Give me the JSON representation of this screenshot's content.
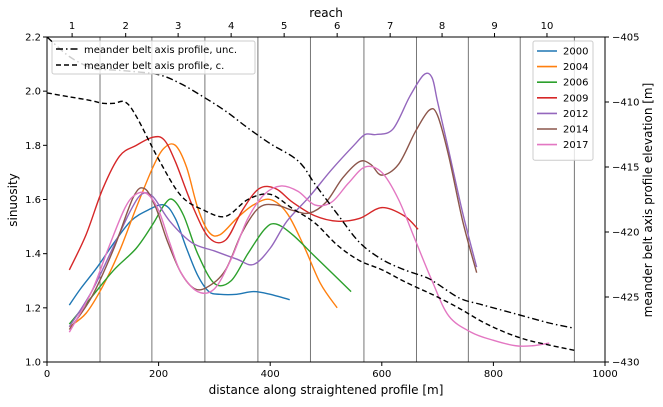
{
  "chart_data": {
    "type": "line",
    "xlabel": "distance along straightened profile [m]",
    "ylabel": "sinuosity",
    "y2label": "meander belt axis profile elevation [m]",
    "top_axis_label": "reach",
    "xlim": [
      0,
      1000
    ],
    "ylim": [
      1.0,
      2.2
    ],
    "y2lim": [
      -430,
      -405
    ],
    "xticks": [
      0,
      200,
      400,
      600,
      800,
      1000
    ],
    "yticks": [
      1.0,
      1.2,
      1.4,
      1.6,
      1.8,
      2.0,
      2.2
    ],
    "yticks_labels": [
      "1.0",
      "1.2",
      "1.4",
      "1.6",
      "1.8",
      "2.0",
      "2.2"
    ],
    "y2ticks": [
      -430,
      -425,
      -420,
      -415,
      -410,
      -405
    ],
    "reach_boundaries": [
      95,
      188,
      283,
      378,
      472,
      568,
      662,
      755,
      848,
      945
    ],
    "reach_labels": [
      "1",
      "2",
      "3",
      "4",
      "5",
      "6",
      "7",
      "8",
      "9",
      "10"
    ],
    "reach_label_x": [
      45,
      141,
      235,
      330,
      425,
      520,
      615,
      708,
      802,
      896
    ],
    "legend_left": {
      "placement": "upper-left",
      "entries": [
        {
          "label": "meander belt axis profile, unc.",
          "dash": "dashdot"
        },
        {
          "label": "meander belt axis profile, c.",
          "dash": "dashed"
        }
      ]
    },
    "legend_right": {
      "placement": "upper-right"
    },
    "series": [
      {
        "name": "2000",
        "color": "#1f77b4",
        "x": [
          40,
          60,
          90,
          120,
          150,
          180,
          210,
          230,
          250,
          270,
          290,
          310,
          340,
          370,
          400,
          435
        ],
        "y": [
          1.21,
          1.27,
          1.35,
          1.44,
          1.52,
          1.56,
          1.58,
          1.53,
          1.42,
          1.32,
          1.26,
          1.25,
          1.25,
          1.26,
          1.25,
          1.23
        ]
      },
      {
        "name": "2004",
        "color": "#ff7f0e",
        "x": [
          40,
          70,
          100,
          130,
          160,
          190,
          210,
          230,
          250,
          270,
          290,
          310,
          340,
          370,
          400,
          430,
          460,
          490,
          520
        ],
        "y": [
          1.13,
          1.18,
          1.28,
          1.41,
          1.57,
          1.72,
          1.79,
          1.8,
          1.72,
          1.57,
          1.48,
          1.47,
          1.53,
          1.58,
          1.6,
          1.55,
          1.43,
          1.29,
          1.2
        ]
      },
      {
        "name": "2006",
        "color": "#2ca02c",
        "x": [
          40,
          80,
          120,
          160,
          190,
          210,
          225,
          245,
          270,
          300,
          330,
          360,
          390,
          410,
          440,
          480,
          520,
          545
        ],
        "y": [
          1.14,
          1.24,
          1.34,
          1.42,
          1.51,
          1.58,
          1.6,
          1.54,
          1.4,
          1.29,
          1.3,
          1.4,
          1.49,
          1.51,
          1.47,
          1.39,
          1.31,
          1.26
        ]
      },
      {
        "name": "2009",
        "color": "#d62728",
        "x": [
          40,
          70,
          100,
          130,
          160,
          190,
          210,
          230,
          260,
          290,
          320,
          350,
          380,
          410,
          440,
          480,
          520,
          560,
          600,
          640,
          665
        ],
        "y": [
          1.34,
          1.47,
          1.64,
          1.76,
          1.8,
          1.83,
          1.82,
          1.74,
          1.58,
          1.46,
          1.45,
          1.56,
          1.64,
          1.64,
          1.59,
          1.54,
          1.52,
          1.53,
          1.57,
          1.54,
          1.49
        ]
      },
      {
        "name": "2012",
        "color": "#9467bd",
        "x": [
          40,
          80,
          120,
          150,
          170,
          190,
          220,
          260,
          300,
          340,
          370,
          400,
          430,
          470,
          510,
          550,
          570,
          590,
          620,
          650,
          675,
          690,
          700,
          720,
          745,
          770
        ],
        "y": [
          1.13,
          1.26,
          1.43,
          1.56,
          1.62,
          1.61,
          1.52,
          1.44,
          1.41,
          1.38,
          1.36,
          1.42,
          1.52,
          1.61,
          1.71,
          1.8,
          1.84,
          1.84,
          1.86,
          1.98,
          2.06,
          2.05,
          1.96,
          1.78,
          1.55,
          1.35
        ]
      },
      {
        "name": "2014",
        "color": "#8c564b",
        "x": [
          40,
          80,
          120,
          155,
          175,
          195,
          215,
          240,
          265,
          290,
          320,
          350,
          380,
          410,
          440,
          470,
          500,
          530,
          560,
          580,
          600,
          630,
          660,
          685,
          700,
          720,
          745,
          770
        ],
        "y": [
          1.12,
          1.24,
          1.42,
          1.61,
          1.64,
          1.57,
          1.45,
          1.33,
          1.27,
          1.28,
          1.34,
          1.48,
          1.57,
          1.58,
          1.56,
          1.55,
          1.59,
          1.68,
          1.74,
          1.73,
          1.69,
          1.73,
          1.85,
          1.93,
          1.91,
          1.76,
          1.52,
          1.33
        ]
      },
      {
        "name": "2017",
        "color": "#e377c2",
        "x": [
          40,
          80,
          110,
          140,
          160,
          180,
          200,
          220,
          240,
          270,
          300,
          330,
          360,
          390,
          420,
          450,
          480,
          510,
          540,
          570,
          600,
          630,
          660,
          690,
          720,
          760,
          800,
          840,
          870,
          900
        ],
        "y": [
          1.11,
          1.26,
          1.42,
          1.57,
          1.62,
          1.62,
          1.56,
          1.44,
          1.33,
          1.26,
          1.27,
          1.38,
          1.53,
          1.62,
          1.65,
          1.63,
          1.58,
          1.59,
          1.66,
          1.72,
          1.7,
          1.6,
          1.45,
          1.3,
          1.17,
          1.11,
          1.08,
          1.06,
          1.06,
          1.07
        ]
      }
    ],
    "elevation_series": [
      {
        "name": "meander belt axis profile, unc.",
        "dash": "dashdot",
        "color": "#000000",
        "x": [
          0,
          40,
          80,
          100,
          140,
          200,
          240,
          280,
          320,
          360,
          400,
          440,
          460,
          480,
          520,
          560,
          600,
          640,
          680,
          700,
          740,
          780,
          840,
          900,
          945
        ],
        "y": [
          -405.0,
          -406.5,
          -407.4,
          -407.5,
          -407.6,
          -407.9,
          -408.6,
          -409.6,
          -410.7,
          -412.0,
          -413.2,
          -414.2,
          -415.0,
          -416.3,
          -418.6,
          -420.8,
          -422.1,
          -422.9,
          -423.5,
          -424.0,
          -425.1,
          -425.6,
          -426.3,
          -427.0,
          -427.4
        ]
      },
      {
        "name": "meander belt axis profile, c.",
        "dash": "dashed",
        "color": "#000000",
        "x": [
          0,
          40,
          80,
          100,
          120,
          140,
          160,
          200,
          240,
          280,
          320,
          360,
          400,
          440,
          480,
          520,
          560,
          600,
          640,
          680,
          700,
          740,
          780,
          820,
          860,
          900,
          945
        ],
        "y": [
          -409.3,
          -409.6,
          -409.9,
          -410.1,
          -410.1,
          -410.0,
          -411.1,
          -414.4,
          -417.2,
          -418.3,
          -418.8,
          -417.5,
          -417.1,
          -418.2,
          -419.3,
          -421.0,
          -422.2,
          -422.9,
          -423.8,
          -424.6,
          -425.0,
          -425.9,
          -426.9,
          -427.7,
          -428.3,
          -428.7,
          -429.1
        ]
      }
    ]
  }
}
